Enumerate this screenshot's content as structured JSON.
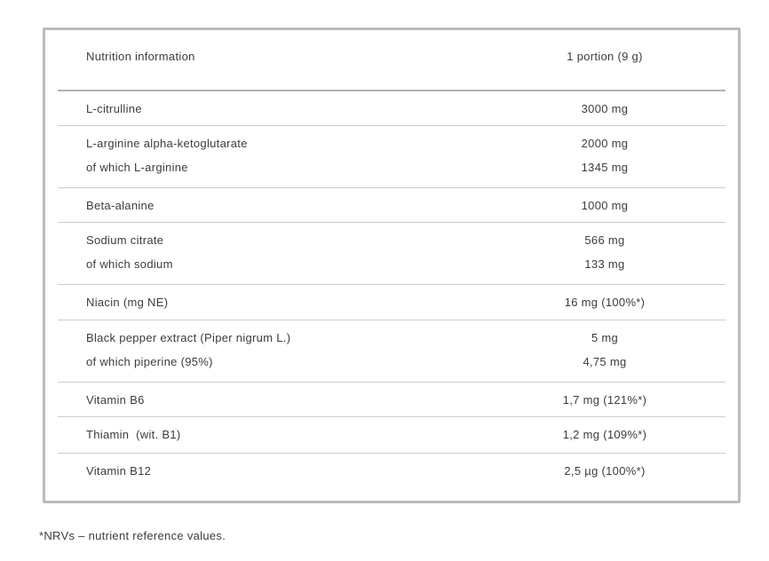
{
  "table": {
    "header": {
      "label": "Nutrition information",
      "value": "1 portion (9 g)"
    },
    "rows": [
      {
        "label": "L-citrulline",
        "value": "3000 mg"
      },
      {
        "label": "L-arginine alpha-ketoglutarate",
        "value": "2000 mg",
        "sub_label": "of which L-arginine",
        "sub_value": "1345 mg"
      },
      {
        "label": "Beta-alanine",
        "value": "1000 mg"
      },
      {
        "label": "Sodium citrate",
        "value": "566 mg",
        "sub_label": "of which sodium",
        "sub_value": "133 mg"
      },
      {
        "label": "Niacin (mg NE)",
        "value": "16 mg (100%*)"
      },
      {
        "label": "Black pepper extract (Piper nigrum L.)",
        "value": "5 mg",
        "sub_label": "of which piperine (95%)",
        "sub_value": "4,75 mg"
      },
      {
        "label": "Vitamin B6",
        "value": "1,7 mg (121%*)"
      },
      {
        "label": "Thiamin  (wit. B1)",
        "value": "1,2 mg (109%*)"
      },
      {
        "label": "Vitamin B12",
        "value": "2,5 µg (100%*)"
      }
    ]
  },
  "footnote": "*NRVs – nutrient reference values.",
  "colors": {
    "card_border": "#bcbcbc",
    "header_divider": "#b3b3b3",
    "row_divider": "#cdcdcd",
    "text": "#3c3c3c"
  }
}
